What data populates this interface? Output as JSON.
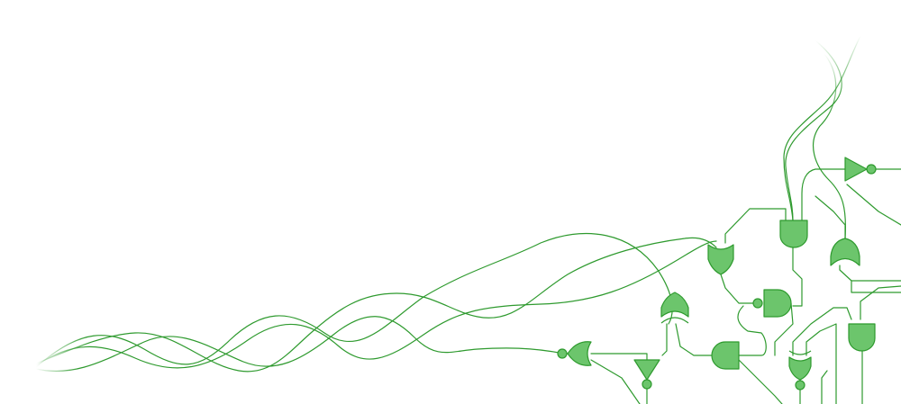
{
  "colors": {
    "background": "#ffffff",
    "stroke": "#2e9a2e",
    "fill": "#6cc56c"
  },
  "icons": {
    "gates": [
      "not-gate-icon",
      "and-gate-icon",
      "nand-gate-icon",
      "or-gate-icon",
      "nor-gate-icon",
      "xor-gate-icon",
      "xnor-gate-icon",
      "buffer-gate-icon"
    ]
  }
}
